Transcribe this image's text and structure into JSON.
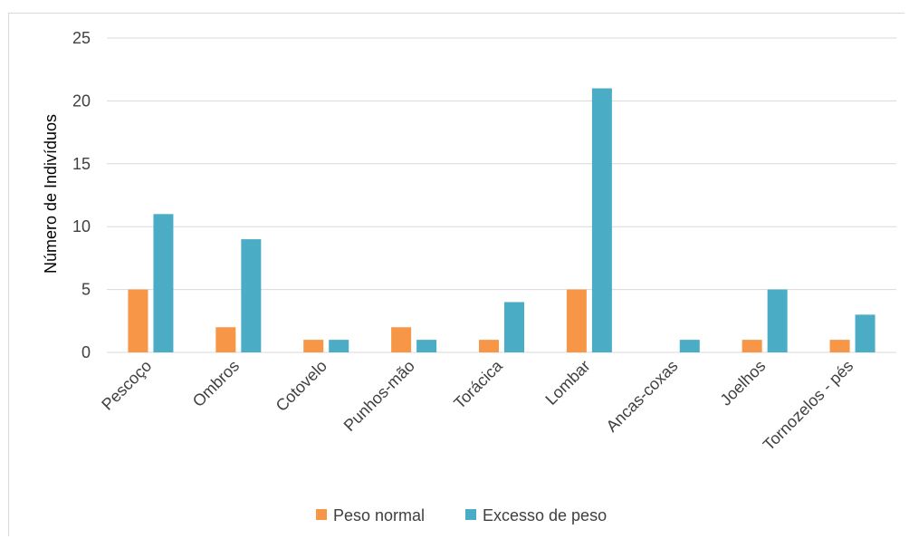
{
  "chart_data": {
    "type": "bar",
    "title": "",
    "xlabel": "",
    "ylabel": "Número de Indivíduos",
    "ylim": [
      0,
      25
    ],
    "yticks": [
      0,
      5,
      10,
      15,
      20,
      25
    ],
    "grid": true,
    "legend_position": "bottom",
    "categories": [
      "Pescoço",
      "Ombros",
      "Cotovelo",
      "Punhos-mão",
      "Torácica",
      "Lombar",
      "Ancas-coxas",
      "Joelhos",
      "Tornozelos - pés"
    ],
    "series": [
      {
        "name": "Peso normal",
        "color": "#F79646",
        "values": [
          5,
          2,
          1,
          2,
          1,
          5,
          0,
          1,
          1
        ]
      },
      {
        "name": "Excesso de peso",
        "color": "#4BACC6",
        "values": [
          11,
          9,
          1,
          1,
          4,
          21,
          1,
          5,
          3
        ]
      }
    ]
  }
}
